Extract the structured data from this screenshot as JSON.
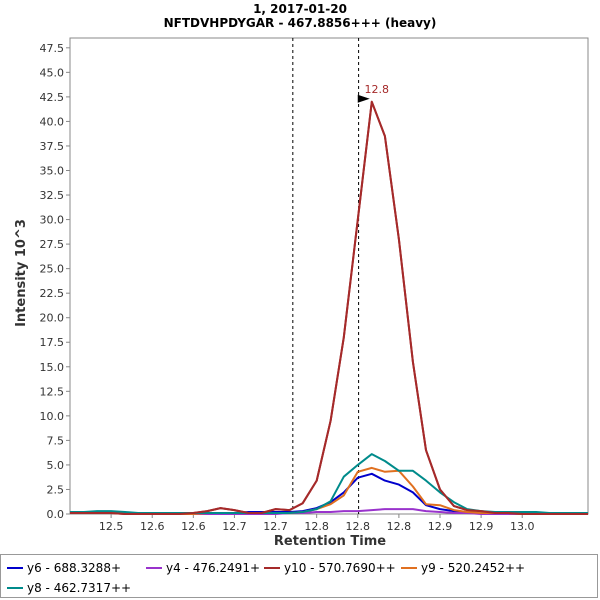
{
  "chart_data": {
    "type": "line",
    "title": "1, 2017-01-20",
    "subtitle": "NFTDVHPDYGAR - 467.8856+++ (heavy)",
    "xlabel": "Retention Time",
    "ylabel": "Intensity 10^3",
    "xlim": [
      12.45,
      13.08
    ],
    "ylim": [
      0,
      48.5
    ],
    "x_ticks": [
      12.5,
      12.55,
      12.6,
      12.65,
      12.7,
      12.75,
      12.8,
      12.85,
      12.9,
      12.95,
      13.0
    ],
    "x_tick_labels": [
      "12.5",
      "12.6",
      "12.6",
      "12.7",
      "12.7",
      "12.8",
      "12.8",
      "12.8",
      "12.9",
      "12.9",
      "13.0"
    ],
    "y_ticks": [
      0,
      2.5,
      5,
      7.5,
      10,
      12.5,
      15,
      17.5,
      20,
      22.5,
      25,
      27.5,
      30,
      32.5,
      35,
      37.5,
      40,
      42.5,
      45,
      47.5
    ],
    "y_tick_labels": [
      "0.0",
      "2.5",
      "5.0",
      "7.5",
      "10.0",
      "12.5",
      "15.0",
      "17.5",
      "20.0",
      "22.5",
      "25.0",
      "27.5",
      "30.0",
      "32.5",
      "35.0",
      "37.5",
      "40.0",
      "42.5",
      "45.0",
      "47.5"
    ],
    "boundaries": [
      12.721,
      12.801
    ],
    "peak_annotation": {
      "label": "12.8",
      "x": 12.817,
      "y": 42.0
    },
    "grid": false,
    "legend_position": "bottom",
    "x": [
      12.45,
      12.467,
      12.483,
      12.5,
      12.517,
      12.533,
      12.55,
      12.567,
      12.583,
      12.6,
      12.617,
      12.633,
      12.65,
      12.667,
      12.683,
      12.7,
      12.717,
      12.733,
      12.75,
      12.767,
      12.783,
      12.8,
      12.817,
      12.833,
      12.85,
      12.867,
      12.883,
      12.9,
      12.917,
      12.933,
      12.95,
      12.967,
      12.983,
      13.0,
      13.017,
      13.033,
      13.05,
      13.067,
      13.08
    ],
    "series": [
      {
        "name": "y6 - 688.3288+",
        "color": "#0000cc",
        "values": [
          0.1,
          0.1,
          0.1,
          0.1,
          0.1,
          0.0,
          0.0,
          0.0,
          0.0,
          0.0,
          0.1,
          0.1,
          0.1,
          0.2,
          0.2,
          0.2,
          0.2,
          0.3,
          0.6,
          1.2,
          2.2,
          3.7,
          4.1,
          3.4,
          3.0,
          2.2,
          0.9,
          0.5,
          0.3,
          0.1,
          0.1,
          0.0,
          0.0,
          0.0,
          0.0,
          0.0,
          0.0,
          0.0,
          0.0
        ]
      },
      {
        "name": "y4 - 476.2491+",
        "color": "#9933cc",
        "values": [
          0.1,
          0.1,
          0.1,
          0.1,
          0.1,
          0.1,
          0.0,
          0.0,
          0.0,
          0.0,
          0.0,
          0.0,
          0.0,
          0.0,
          0.0,
          0.0,
          0.1,
          0.1,
          0.2,
          0.2,
          0.3,
          0.3,
          0.4,
          0.5,
          0.5,
          0.5,
          0.3,
          0.2,
          0.1,
          0.1,
          0.0,
          0.0,
          0.0,
          0.0,
          0.0,
          0.0,
          0.0,
          0.0,
          0.0
        ]
      },
      {
        "name": "y10 - 570.7690++",
        "color": "#a52a2a",
        "values": [
          0.1,
          0.1,
          0.1,
          0.1,
          0.0,
          0.0,
          0.0,
          0.0,
          0.0,
          0.1,
          0.3,
          0.6,
          0.4,
          0.1,
          0.1,
          0.5,
          0.4,
          1.1,
          3.4,
          9.5,
          18.0,
          30.0,
          42.0,
          38.5,
          28.0,
          15.5,
          6.5,
          2.5,
          0.8,
          0.4,
          0.3,
          0.1,
          0.1,
          0.0,
          0.0,
          0.0,
          0.0,
          0.0,
          0.0
        ]
      },
      {
        "name": "y9 - 520.2452++",
        "color": "#e07020",
        "values": [
          0.1,
          0.1,
          0.1,
          0.1,
          0.1,
          0.0,
          0.0,
          0.0,
          0.0,
          0.0,
          0.1,
          0.1,
          0.1,
          0.1,
          0.1,
          0.1,
          0.1,
          0.2,
          0.5,
          1.0,
          1.9,
          4.3,
          4.7,
          4.3,
          4.4,
          2.8,
          1.0,
          0.9,
          0.4,
          0.2,
          0.1,
          0.1,
          0.1,
          0.0,
          0.0,
          0.0,
          0.0,
          0.0,
          0.0
        ]
      },
      {
        "name": "y8 - 462.7317++",
        "color": "#008b8b",
        "values": [
          0.2,
          0.2,
          0.3,
          0.3,
          0.2,
          0.1,
          0.1,
          0.1,
          0.1,
          0.1,
          0.1,
          0.1,
          0.1,
          0.1,
          0.1,
          0.1,
          0.1,
          0.2,
          0.5,
          1.3,
          3.8,
          5.0,
          6.1,
          5.4,
          4.4,
          4.4,
          3.4,
          2.2,
          1.2,
          0.5,
          0.3,
          0.2,
          0.2,
          0.2,
          0.2,
          0.1,
          0.1,
          0.1,
          0.1
        ]
      }
    ]
  }
}
